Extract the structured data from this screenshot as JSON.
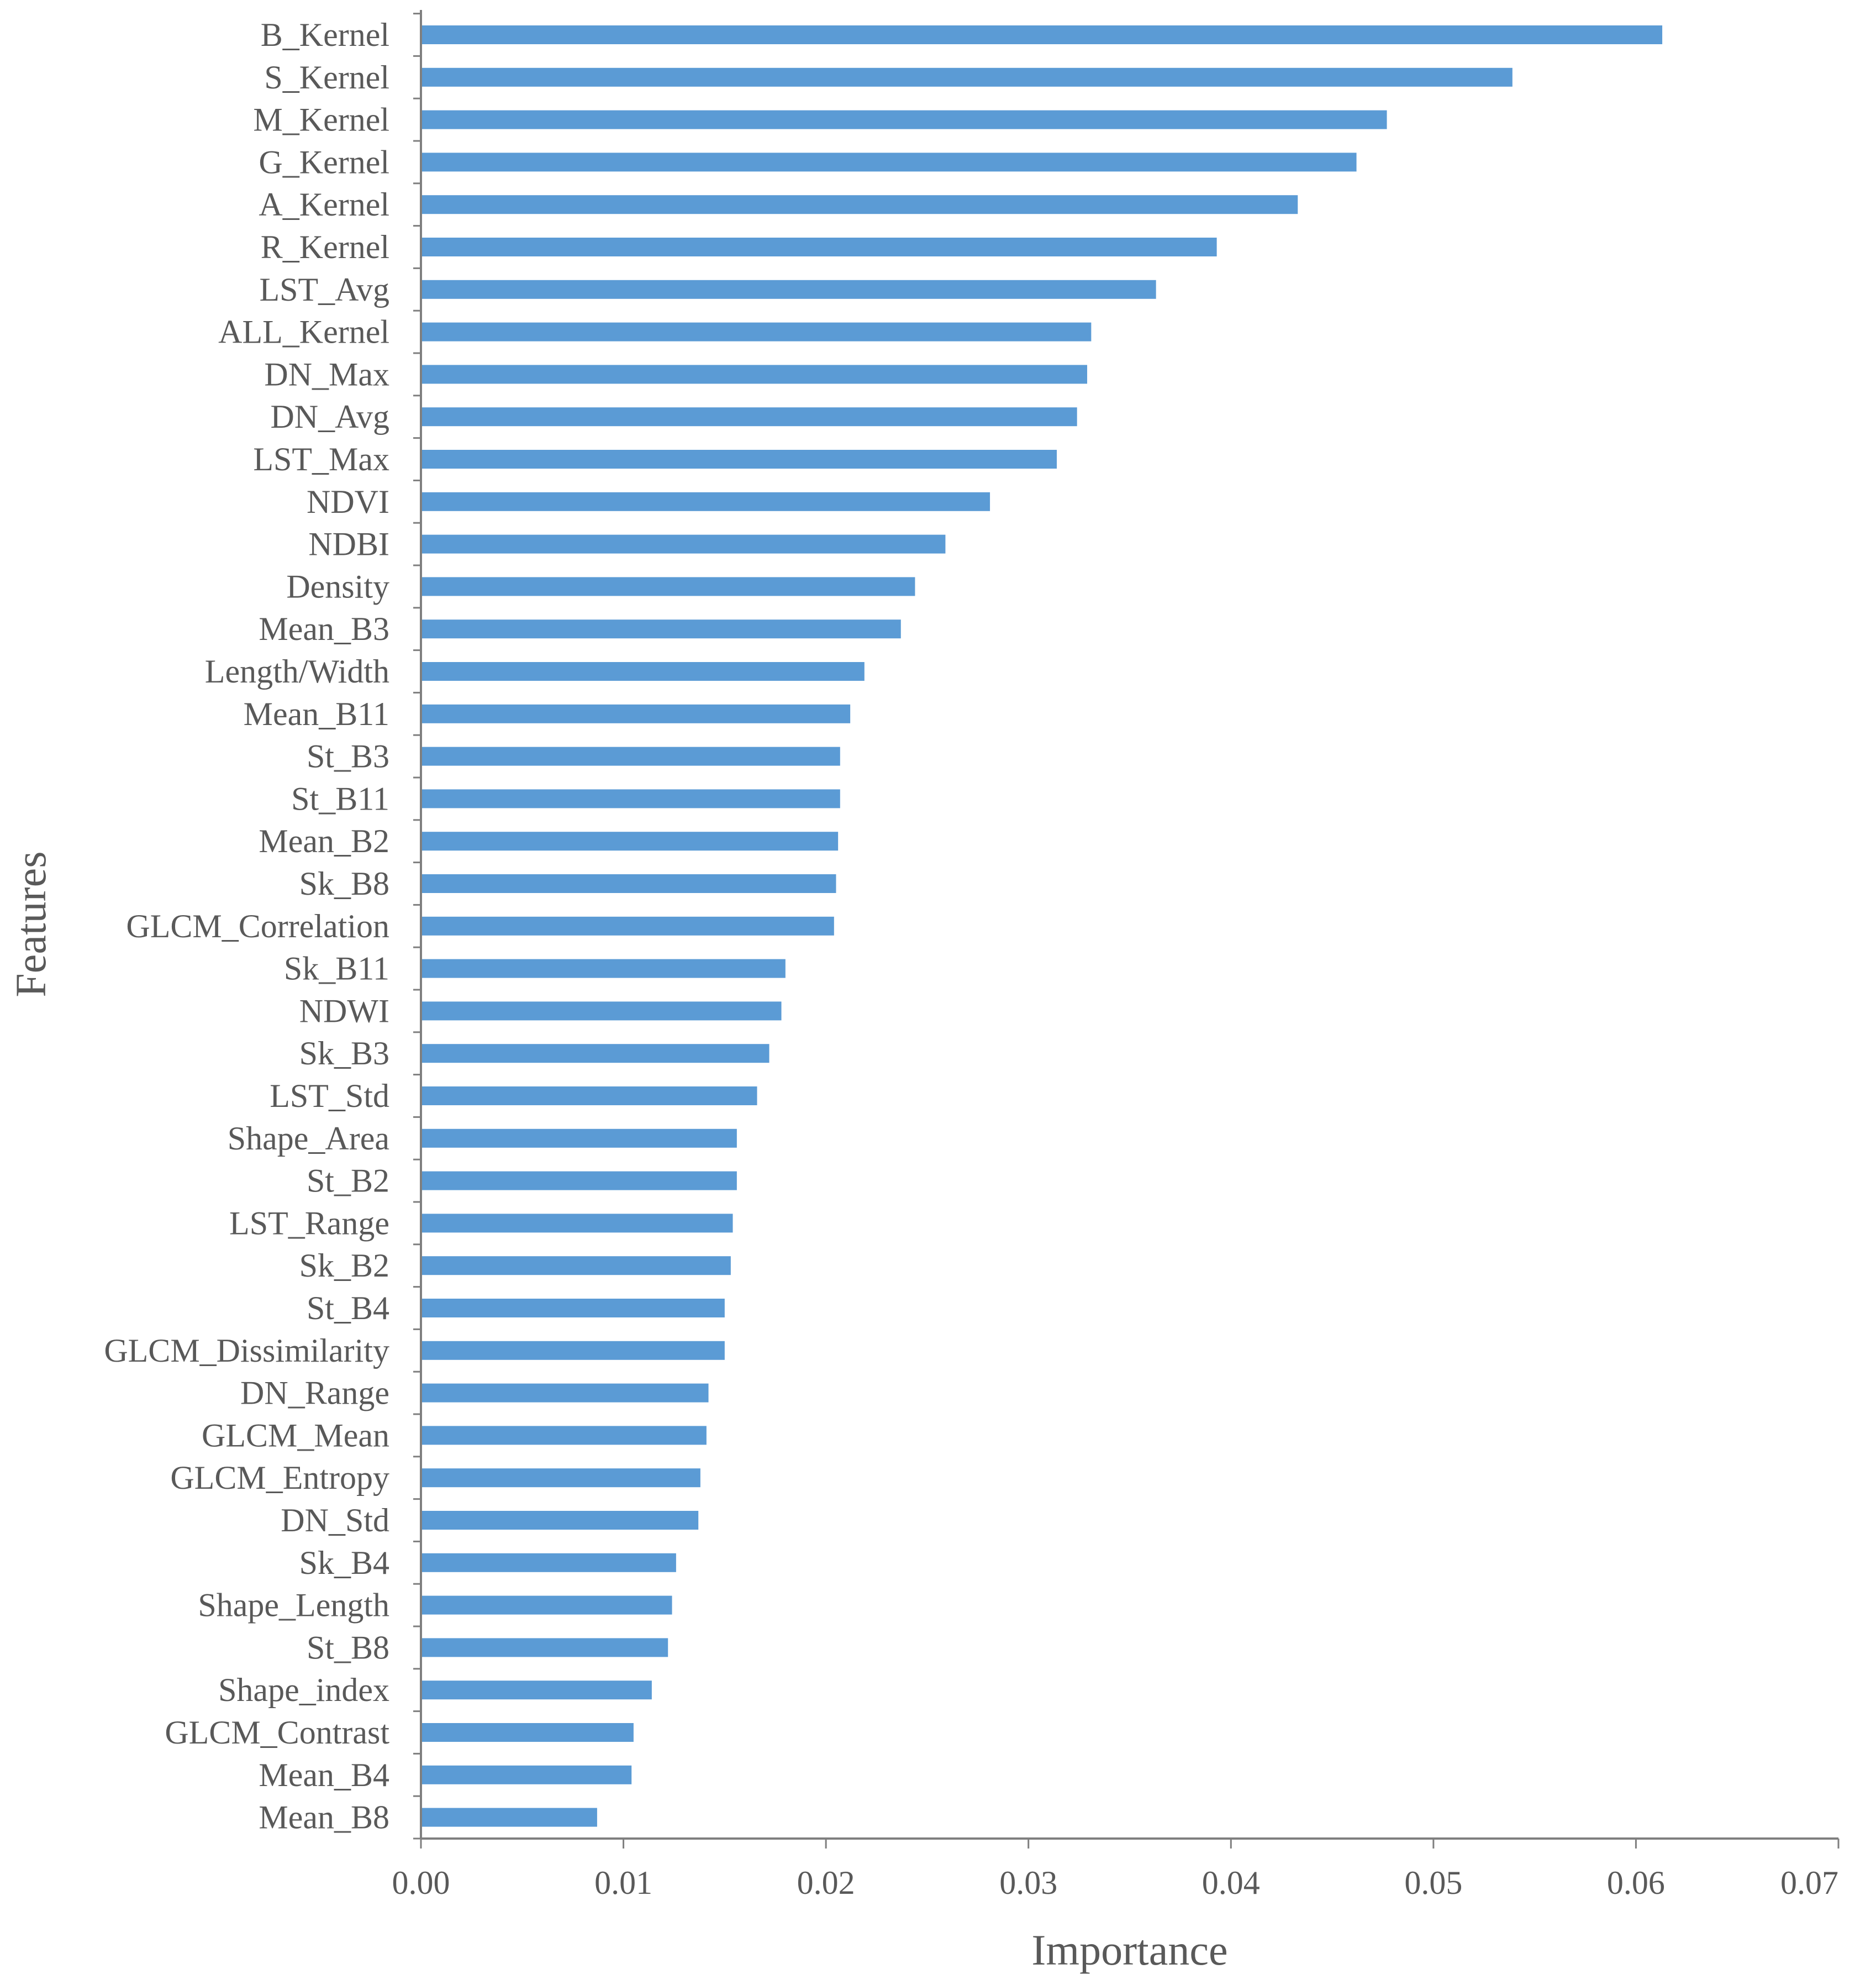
{
  "chart_data": {
    "type": "bar",
    "orientation": "horizontal",
    "xlabel": "Importance",
    "ylabel": "Features",
    "xlim": [
      0,
      0.07
    ],
    "x_ticks": [
      "0.00",
      "0.01",
      "0.02",
      "0.03",
      "0.04",
      "0.05",
      "0.06",
      "0.07"
    ],
    "grid": false,
    "legend": "none",
    "bar_color": "#5B9BD5",
    "axis_color": "#7F7F7F",
    "categories": [
      "B_Kernel",
      "S_Kernel",
      "M_Kernel",
      "G_Kernel",
      "A_Kernel",
      "R_Kernel",
      "LST_Avg",
      "ALL_Kernel",
      "DN_Max",
      "DN_Avg",
      "LST_Max",
      "NDVI",
      "NDBI",
      "Density",
      "Mean_B3",
      "Length/Width",
      "Mean_B11",
      "St_B3",
      "St_B11",
      "Mean_B2",
      "Sk_B8",
      "GLCM_Correlation",
      "Sk_B11",
      "NDWI",
      "Sk_B3",
      "LST_Std",
      "Shape_Area",
      "St_B2",
      "LST_Range",
      "Sk_B2",
      "St_B4",
      "GLCM_Dissimilarity",
      "DN_Range",
      "GLCM_Mean",
      "GLCM_Entropy",
      "DN_Std",
      "Sk_B4",
      "Shape_Length",
      "St_B8",
      "Shape_index",
      "GLCM_Contrast",
      "Mean_B4",
      "Mean_B8"
    ],
    "values": [
      0.0613,
      0.0539,
      0.0477,
      0.0462,
      0.0433,
      0.0393,
      0.0363,
      0.0331,
      0.0329,
      0.0324,
      0.0314,
      0.0281,
      0.0259,
      0.0244,
      0.0237,
      0.0219,
      0.0212,
      0.0207,
      0.0207,
      0.0206,
      0.0205,
      0.0204,
      0.018,
      0.0178,
      0.0172,
      0.0166,
      0.0156,
      0.0156,
      0.0154,
      0.0153,
      0.015,
      0.015,
      0.0142,
      0.0141,
      0.0138,
      0.0137,
      0.0126,
      0.0124,
      0.0122,
      0.0114,
      0.0105,
      0.0104,
      0.0087
    ]
  }
}
